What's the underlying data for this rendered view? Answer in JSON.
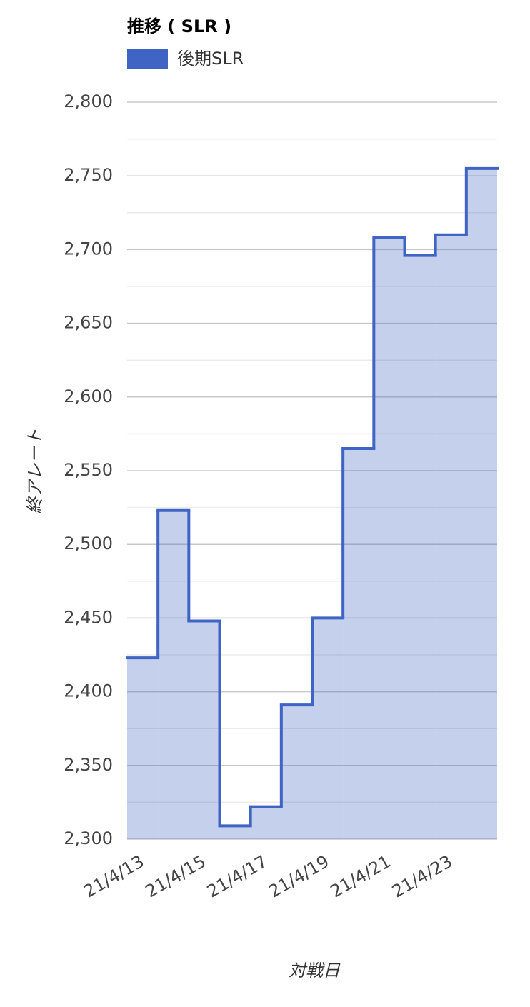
{
  "chart_data": {
    "type": "stepped-area",
    "title": "推移 ( SLR )",
    "x_label": "対戦日",
    "y_label": "終アレート",
    "categories": [
      "21/4/13",
      null,
      "21/4/15",
      null,
      "21/4/17",
      null,
      "21/4/19",
      null,
      "21/4/21",
      null,
      "21/4/23",
      null
    ],
    "series": [
      {
        "name": "後期SLR",
        "color": "#3f64c4",
        "values": [
          2423,
          2523,
          2448,
          2309,
          2322,
          2391,
          2450,
          2565,
          2708,
          2696,
          2710,
          2755
        ]
      }
    ],
    "ylim": [
      2300,
      2800
    ],
    "yticks": [
      {
        "value": 2300,
        "label": "2,300"
      },
      {
        "value": 2350,
        "label": "2,350"
      },
      {
        "value": 2400,
        "label": "2,400"
      },
      {
        "value": 2450,
        "label": "2,450"
      },
      {
        "value": 2500,
        "label": "2,500"
      },
      {
        "value": 2550,
        "label": "2,550"
      },
      {
        "value": 2600,
        "label": "2,600"
      },
      {
        "value": 2650,
        "label": "2,650"
      },
      {
        "value": 2700,
        "label": "2,700"
      },
      {
        "value": 2750,
        "label": "2,750"
      },
      {
        "value": 2800,
        "label": "2,800"
      }
    ],
    "minor_yticks": [
      2325,
      2375,
      2425,
      2475,
      2525,
      2575,
      2625,
      2675,
      2725,
      2775
    ],
    "grid": true
  }
}
